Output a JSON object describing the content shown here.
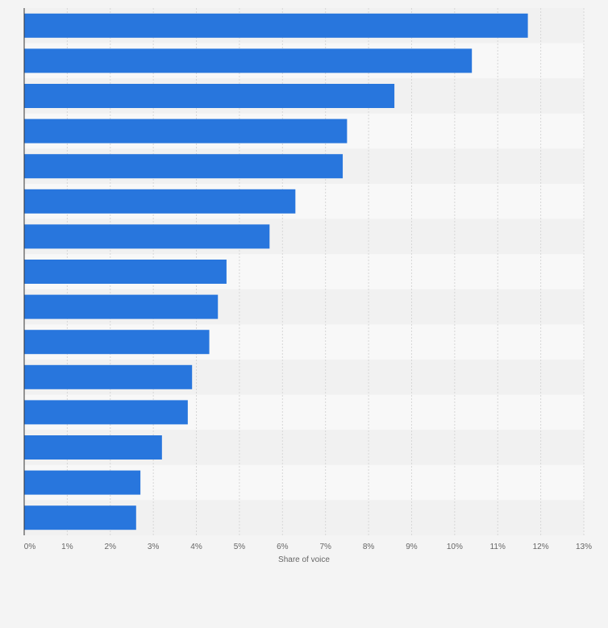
{
  "colors": {
    "bar": "#2876dd",
    "band_light": "#f8f8f8",
    "band_dark": "#f1f1f1",
    "grid": "#d6d6d6",
    "axis": "#333333",
    "text": "#666666",
    "page_background": "#f4f4f4"
  },
  "chart_data": {
    "type": "bar",
    "orientation": "horizontal",
    "categories": [
      "",
      "",
      "",
      "",
      "",
      "",
      "",
      "",
      "",
      "",
      "",
      "",
      "",
      "",
      ""
    ],
    "values": [
      11.7,
      10.4,
      8.6,
      7.5,
      7.4,
      6.3,
      5.7,
      4.7,
      4.5,
      4.3,
      3.9,
      3.8,
      3.2,
      2.7,
      2.6
    ],
    "xlabel": "Share of voice",
    "ylabel": "",
    "xlim": [
      0,
      13
    ],
    "x_ticks": [
      "0%",
      "1%",
      "2%",
      "3%",
      "4%",
      "5%",
      "6%",
      "7%",
      "8%",
      "9%",
      "10%",
      "11%",
      "12%",
      "13%"
    ],
    "grid": true,
    "legend": "none"
  }
}
